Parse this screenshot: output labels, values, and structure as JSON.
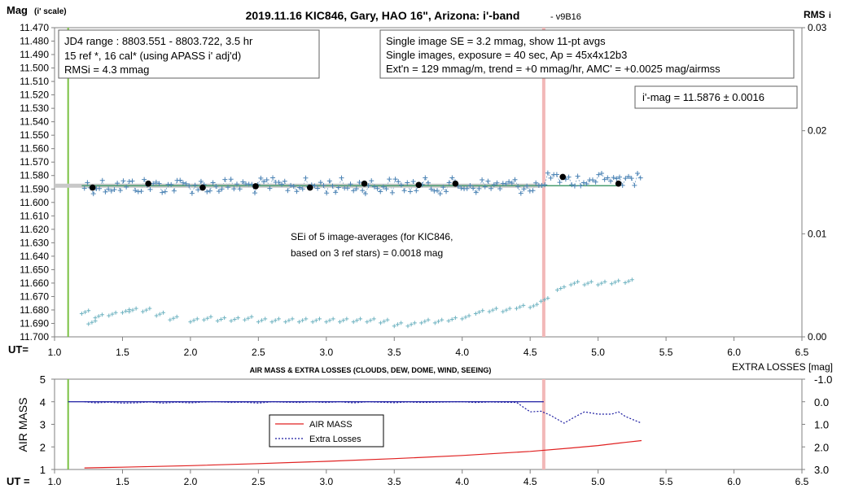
{
  "top_chart": {
    "title": "2019.11.16 KIC846, Gary, HAO 16\", Arizona: i'-band",
    "version": "- v9B16",
    "ylabel": "Mag",
    "ylabel_sub": "(i' scale)",
    "y2label": "RMS",
    "y2label_sub": "i",
    "xlabel": "UT=",
    "info_box_left": [
      "JD4 range : 8803.551 - 8803.722, 3.5  hr",
      "15 ref *, 16 cal* (using APASS i' adj'd)",
      "RMSi = 4.3 mmag"
    ],
    "info_box_right": [
      "Single image SE = 3.2 mmag, show 11-pt avgs",
      "Single images, exposure = 40 sec, Ap = 45x4x12b3",
      "Ext'n = 129 mmag/m, trend = +0 mmag/hr, AMC' = +0.0025 mag/airmss"
    ],
    "result_box": "i'-mag = 11.5876 ± 0.0016",
    "sei_note": [
      "SEi of 5 image-averages (for KIC846,",
      "based on 3 ref stars) = 0.0018 mag"
    ],
    "colors": {
      "crosses": "#4a82b4",
      "rms_crosses": "#6fb3c1",
      "avg_dots": "#000000",
      "fit_line": "#4a9d6f",
      "grey_band": "#c8c8c8",
      "green_marker": "#7ac143",
      "pink_marker": "#f2b8b8"
    }
  },
  "bottom_chart": {
    "title": "AIR MASS & EXTRA LOSSES (CLOUDS, DEW, DOME, WIND, SEEING)",
    "right_title": "EXTRA LOSSES [mag]",
    "ylabel": "AIR MASS",
    "xlabel": "UT =",
    "legend_airmass": "AIR MASS",
    "legend_losses": "Extra Losses",
    "colors": {
      "airmass": "#e02020",
      "losses": "#1a1aa0"
    }
  },
  "chart_data": [
    {
      "type": "scatter",
      "title": "2019.11.16 KIC846, Gary, HAO 16\", Arizona: i'-band",
      "xlabel": "UT=",
      "ylabel": "Mag (i' scale)",
      "y2label": "RMSi",
      "xlim": [
        1.0,
        6.5
      ],
      "ylim": [
        11.7,
        11.47
      ],
      "y2lim": [
        0.0,
        0.03
      ],
      "x_ticks": [
        "1.0",
        "1.5",
        "2.0",
        "2.5",
        "3.0",
        "3.5",
        "4.0",
        "4.5",
        "5.0",
        "5.5",
        "6.0",
        "6.5"
      ],
      "y_ticks": [
        "11.470",
        "11.480",
        "11.490",
        "11.500",
        "11.510",
        "11.520",
        "11.530",
        "11.540",
        "11.550",
        "11.560",
        "11.570",
        "11.580",
        "11.590",
        "11.600",
        "11.610",
        "11.620",
        "11.630",
        "11.640",
        "11.650",
        "11.660",
        "11.670",
        "11.680",
        "11.690",
        "11.700"
      ],
      "y2_ticks": [
        "0.03",
        "0.02",
        "0.01",
        "0.00"
      ],
      "markers_ut": {
        "green": 1.1,
        "pink": 4.6
      },
      "fit_mag": 11.5876,
      "avg_points": {
        "x": [
          1.28,
          1.69,
          2.09,
          2.48,
          2.88,
          3.28,
          3.68,
          3.95,
          4.74,
          5.15
        ],
        "y": [
          11.589,
          11.586,
          11.589,
          11.588,
          11.589,
          11.586,
          11.587,
          11.586,
          11.581,
          11.586
        ]
      },
      "rms_series": {
        "x": [
          1.2,
          1.25,
          1.3,
          1.4,
          1.5,
          1.55,
          1.65,
          1.75,
          1.85,
          2.0,
          2.1,
          2.2,
          2.3,
          2.4,
          2.5,
          2.6,
          2.7,
          2.8,
          2.9,
          3.0,
          3.1,
          3.2,
          3.3,
          3.4,
          3.5,
          3.6,
          3.7,
          3.8,
          3.9,
          4.0,
          4.1,
          4.2,
          4.3,
          4.4,
          4.5,
          4.58,
          4.7,
          4.8,
          4.9,
          5.0,
          5.1,
          5.2
        ],
        "y": [
          0.0024,
          0.0014,
          0.002,
          0.0022,
          0.0025,
          0.0026,
          0.0026,
          0.0022,
          0.0018,
          0.0016,
          0.0018,
          0.0017,
          0.0017,
          0.0018,
          0.0016,
          0.0016,
          0.0016,
          0.0016,
          0.0016,
          0.0016,
          0.0016,
          0.0016,
          0.0016,
          0.0015,
          0.0012,
          0.0012,
          0.0015,
          0.0015,
          0.0017,
          0.0019,
          0.0024,
          0.0026,
          0.0026,
          0.0029,
          0.003,
          0.0036,
          0.0047,
          0.0052,
          0.0052,
          0.0052,
          0.0053,
          0.0054
        ]
      }
    },
    {
      "type": "line",
      "title": "AIR MASS & EXTRA LOSSES (CLOUDS, DEW, DOME, WIND, SEEING)",
      "xlabel": "UT =",
      "ylabel": "AIR MASS",
      "y2label": "EXTRA LOSSES [mag]",
      "xlim": [
        1.0,
        6.5
      ],
      "ylim": [
        1,
        5
      ],
      "y2lim": [
        3.0,
        -1.0
      ],
      "x_ticks": [
        "1.0",
        "1.5",
        "2.0",
        "2.5",
        "3.0",
        "3.5",
        "4.0",
        "4.5",
        "5.0",
        "5.5",
        "6.0",
        "6.5"
      ],
      "y_ticks": [
        "5",
        "4",
        "3",
        "2",
        "1"
      ],
      "y2_ticks": [
        "-1.0",
        "0.0",
        "1.0",
        "2.0",
        "3.0"
      ],
      "series": [
        {
          "name": "AIR MASS",
          "x": [
            1.22,
            1.5,
            2.0,
            2.5,
            3.0,
            3.5,
            4.0,
            4.5,
            4.8,
            5.0,
            5.2,
            5.32
          ],
          "y": [
            1.07,
            1.1,
            1.17,
            1.26,
            1.36,
            1.48,
            1.62,
            1.8,
            1.95,
            2.06,
            2.2,
            2.28
          ]
        },
        {
          "name": "Extra Losses",
          "x": [
            1.22,
            1.3,
            1.4,
            1.5,
            1.6,
            1.7,
            1.8,
            1.9,
            2.0,
            2.1,
            2.2,
            2.3,
            2.4,
            2.5,
            2.6,
            2.7,
            2.8,
            2.9,
            3.0,
            3.1,
            3.2,
            3.3,
            3.4,
            3.5,
            3.6,
            3.7,
            3.8,
            3.9,
            4.0,
            4.1,
            4.2,
            4.3,
            4.4,
            4.5,
            4.58,
            4.65,
            4.75,
            4.82,
            4.9,
            5.0,
            5.1,
            5.15,
            5.2,
            5.32
          ],
          "y": [
            0.0,
            0.05,
            0.02,
            0.06,
            0.05,
            0.01,
            0.06,
            0.02,
            0.05,
            0.01,
            0.0,
            0.03,
            0.02,
            0.06,
            0.0,
            0.02,
            0.03,
            0.01,
            0.03,
            0.0,
            0.05,
            0.0,
            0.02,
            0.04,
            0.01,
            0.03,
            0.02,
            0.01,
            0.0,
            0.03,
            0.01,
            0.02,
            0.03,
            0.45,
            0.42,
            0.6,
            0.95,
            0.7,
            0.45,
            0.55,
            0.55,
            0.45,
            0.65,
            0.95
          ]
        }
      ]
    }
  ]
}
